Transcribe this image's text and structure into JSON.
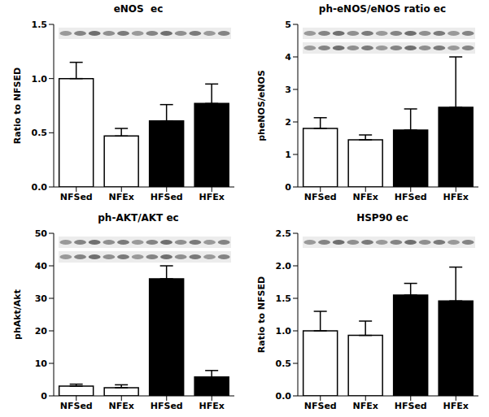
{
  "chart_data": [
    {
      "type": "bar",
      "title": "eNOS  ec",
      "ylabel": "Ratio to NFSED",
      "categories": [
        "NFSed",
        "NFEx",
        "HFSed",
        "HFEx"
      ],
      "values": [
        1.0,
        0.47,
        0.61,
        0.77
      ],
      "errors": [
        0.15,
        0.07,
        0.15,
        0.18
      ],
      "colors": [
        "#ffffff",
        "#ffffff",
        "#000000",
        "#000000"
      ],
      "ylim": [
        0,
        1.5
      ],
      "yticks": [
        {
          "value": 0,
          "label": "0.0"
        },
        {
          "value": 0.5,
          "label": "0.5"
        },
        {
          "value": 1,
          "label": "1.0"
        },
        {
          "value": 1.5,
          "label": "1.5"
        }
      ]
    },
    {
      "type": "bar",
      "title": "ph-eNOS/eNOS ratio ec",
      "ylabel": "pheNOS/eNOS",
      "categories": [
        "NFSed",
        "NFEx",
        "HFSed",
        "HFEx"
      ],
      "values": [
        1.8,
        1.45,
        1.75,
        2.45
      ],
      "errors": [
        0.33,
        0.15,
        0.65,
        1.55
      ],
      "colors": [
        "#ffffff",
        "#ffffff",
        "#000000",
        "#000000"
      ],
      "ylim": [
        0,
        5
      ],
      "yticks": [
        0,
        1,
        2,
        3,
        4,
        5
      ]
    },
    {
      "type": "bar",
      "title": "ph-AKT/AKT ec",
      "ylabel": "phAkt/Akt",
      "categories": [
        "NFSed",
        "NFEx",
        "HFSed",
        "HFEx"
      ],
      "values": [
        3.0,
        2.5,
        36,
        5.8
      ],
      "errors": [
        0.6,
        0.9,
        4,
        2.0
      ],
      "colors": [
        "#ffffff",
        "#ffffff",
        "#000000",
        "#000000"
      ],
      "ylim": [
        0,
        50
      ],
      "yticks": [
        0,
        10,
        20,
        30,
        40,
        50
      ],
      "annotations": [
        {
          "text": "*",
          "category": "HFSed"
        }
      ]
    },
    {
      "type": "bar",
      "title": "HSP90 ec",
      "ylabel": "Ratio to NFSED",
      "categories": [
        "NFSed",
        "NFEx",
        "HFSed",
        "HFEx"
      ],
      "values": [
        1.0,
        0.93,
        1.55,
        1.46
      ],
      "errors": [
        0.3,
        0.22,
        0.18,
        0.52
      ],
      "colors": [
        "#ffffff",
        "#ffffff",
        "#000000",
        "#000000"
      ],
      "ylim": [
        0,
        2.5
      ],
      "yticks": [
        {
          "value": 0,
          "label": "0.0"
        },
        {
          "value": 0.5,
          "label": "0.5"
        },
        {
          "value": 1,
          "label": "1.0"
        },
        {
          "value": 1.5,
          "label": "1.5"
        },
        {
          "value": 2,
          "label": "2.0"
        },
        {
          "value": 2.5,
          "label": "2.5"
        }
      ]
    }
  ]
}
